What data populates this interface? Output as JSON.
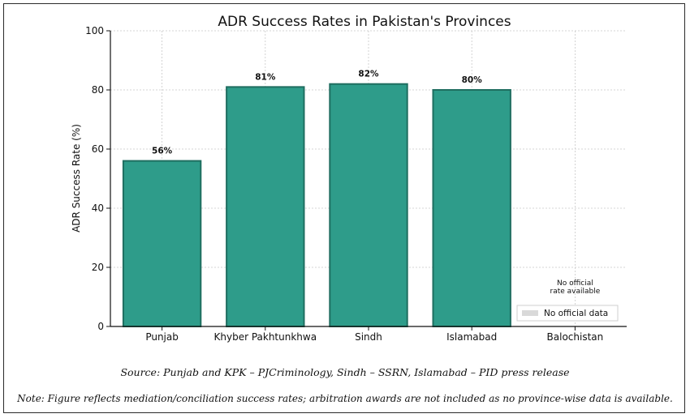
{
  "chart_data": {
    "type": "bar",
    "title": "ADR Success Rates in Pakistan's Provinces",
    "xlabel": "",
    "ylabel": "ADR Success Rate (%)",
    "ylim": [
      0,
      100
    ],
    "yticks": [
      "0",
      "20",
      "40",
      "60",
      "80",
      "100"
    ],
    "categories": [
      "Punjab",
      "Khyber Pakhtunkhwa",
      "Sindh",
      "Islamabad",
      "Balochistan"
    ],
    "values": [
      56,
      81,
      82,
      80,
      null
    ],
    "data_labels": [
      "56%",
      "81%",
      "82%",
      "80%",
      ""
    ],
    "bar_color": "#2e9c8a",
    "bar_edge_color": "#1f6e60",
    "grid": true,
    "annotation": {
      "category": "Balochistan",
      "line1": "No official",
      "line2": "rate available"
    },
    "legend": {
      "placement": "lower-right",
      "entries": [
        {
          "label": "No official data",
          "color": "#d9d9d9"
        }
      ]
    }
  },
  "footer": {
    "source": "Source: Punjab and KPK – PJCriminology, Sindh – SSRN, Islamabad – PID press release",
    "note": "Note: Figure reflects mediation/conciliation success rates; arbitration awards are not included as no province-wise data is available."
  }
}
